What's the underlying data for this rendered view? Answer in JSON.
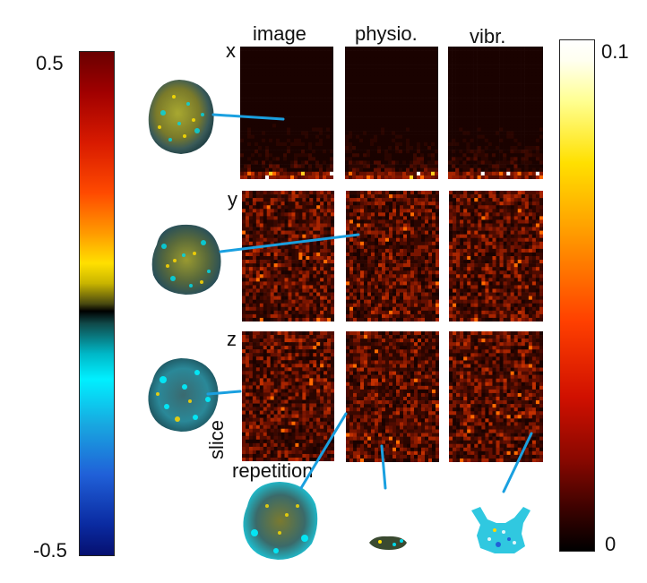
{
  "columns": [
    "image",
    "physio.",
    "vibr."
  ],
  "rows": [
    "x",
    "y",
    "z"
  ],
  "axis_labels": {
    "slice": "slice",
    "repetition": "repetition"
  },
  "left_colorbar": {
    "max_label": "0.5",
    "min_label": "-0.5",
    "colormap": "diverging-blue-cyan-black-yellow-red"
  },
  "right_colorbar": {
    "max_label": "0.1",
    "min_label": "0",
    "colormap": "hot"
  },
  "colors": {
    "connector": "#1aa0e0",
    "panel_dark": "#1a0400",
    "panel_mid": "#6a1300",
    "panel_hot": "#ff5500"
  }
}
